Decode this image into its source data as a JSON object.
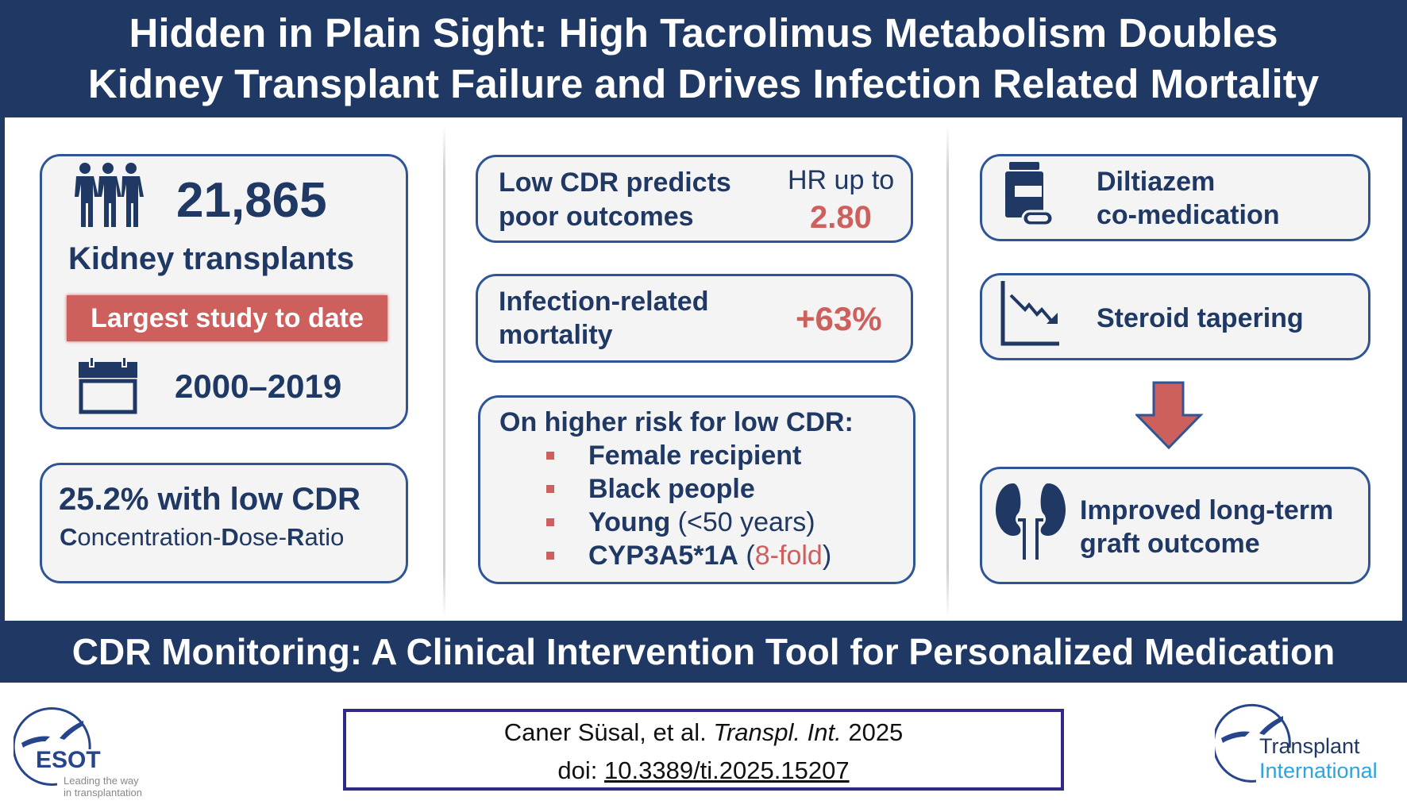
{
  "header": {
    "title_line1": "Hidden in Plain Sight: High Tacrolimus Metabolism Doubles",
    "title_line2": "Kidney Transplant Failure and Drives Infection Related Mortality"
  },
  "left": {
    "count": "21,865",
    "count_label": "Kidney transplants",
    "badge": "Largest study to date",
    "years": "2000–2019",
    "low_cdr": "25.2% with low CDR",
    "cdr_def": [
      {
        "b": "C",
        "t": "oncentration-"
      },
      {
        "b": "D",
        "t": "ose-"
      },
      {
        "b": "R",
        "t": "atio"
      }
    ]
  },
  "middle": {
    "box1": {
      "line1": "Low CDR predicts",
      "line2": "poor outcomes",
      "hr_label": "HR up to",
      "hr_value": "2.80"
    },
    "box2": {
      "line1": "Infection-related",
      "line2": "mortality",
      "value": "+63%"
    },
    "box3": {
      "title": "On higher risk for low CDR:",
      "items": [
        {
          "bold": "Female recipient",
          "extra": ""
        },
        {
          "bold": "Black people",
          "extra": ""
        },
        {
          "bold": "Young",
          "extra": " (<50 years)"
        },
        {
          "bold": "CYP3A5*1A",
          "extra_pre": " (",
          "extra_red": "8-fold",
          "extra_post": ")"
        }
      ]
    }
  },
  "right": {
    "box1": {
      "line1": "Diltiazem",
      "line2": "co-medication"
    },
    "box2": {
      "label": "Steroid tapering"
    },
    "box3": {
      "line1": "Improved long-term",
      "line2": "graft outcome"
    }
  },
  "footer": {
    "banner": "CDR Monitoring: A Clinical Intervention Tool for Personalized Medication",
    "citation_authors": "Caner Süsal, et al. ",
    "citation_journal": "Transpl. Int.",
    "citation_year": " 2025",
    "doi_label": "doi: ",
    "doi": "10.3389/ti.2025.15207",
    "esot_logo": "ESOT",
    "esot_tagline1": "Leading the way",
    "esot_tagline2": "in transplantation",
    "ti_logo1": "Transplant",
    "ti_logo2": "International"
  },
  "colors": {
    "navy": "#1f3864",
    "border": "#2f5597",
    "accent_red": "#cd5f5c",
    "box_bg": "#f4f4f4"
  }
}
